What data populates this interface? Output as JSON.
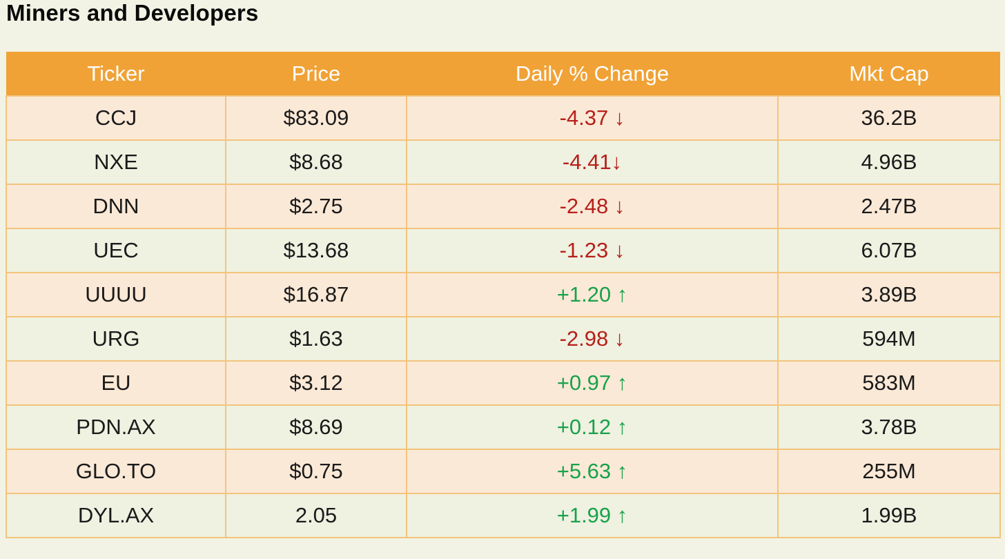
{
  "chart_data": {
    "type": "table",
    "title": "Miners and Developers",
    "columns": [
      "Ticker",
      "Price",
      "Daily % Change",
      "Mkt Cap"
    ],
    "rows": [
      {
        "ticker": "CCJ",
        "price": "$83.09",
        "change": "-4.37 ",
        "arrow": "↓",
        "direction": "down",
        "mkt_cap": "36.2B"
      },
      {
        "ticker": "NXE",
        "price": "$8.68",
        "change": "-4.41",
        "arrow": "↓",
        "direction": "down",
        "mkt_cap": "4.96B"
      },
      {
        "ticker": "DNN",
        "price": "$2.75",
        "change": "-2.48 ",
        "arrow": "↓",
        "direction": "down",
        "mkt_cap": "2.47B"
      },
      {
        "ticker": "UEC",
        "price": "$13.68",
        "change": "-1.23 ",
        "arrow": "↓",
        "direction": "down",
        "mkt_cap": "6.07B"
      },
      {
        "ticker": "UUUU",
        "price": "$16.87",
        "change": "+1.20 ",
        "arrow": "↑",
        "direction": "up",
        "mkt_cap": "3.89B"
      },
      {
        "ticker": "URG",
        "price": "$1.63",
        "change": "-2.98 ",
        "arrow": "↓",
        "direction": "down",
        "mkt_cap": "594M"
      },
      {
        "ticker": "EU",
        "price": "$3.12",
        "change": "+0.97 ",
        "arrow": "↑",
        "direction": "up",
        "mkt_cap": "583M"
      },
      {
        "ticker": "PDN.AX",
        "price": "$8.69",
        "change": "+0.12 ",
        "arrow": "↑",
        "direction": "up",
        "mkt_cap": "3.78B"
      },
      {
        "ticker": "GLO.TO",
        "price": "$0.75",
        "change": "+5.63 ",
        "arrow": "↑",
        "direction": "up",
        "mkt_cap": "255M"
      },
      {
        "ticker": "DYL.AX",
        "price": "2.05",
        "change": "+1.99 ",
        "arrow": "↑",
        "direction": "up",
        "mkt_cap": "1.99B"
      }
    ],
    "layout": {
      "row_striping": "peach/cream alternating",
      "all_cells_centered": true,
      "grid": true
    }
  },
  "colors": {
    "bg": "#f2f3e4",
    "header-bg": "#f0a236",
    "header-fg": "#fdfdfd",
    "peach": "#fbe9d7",
    "cream": "#eff1e1",
    "border": "#f3c47c",
    "negative": "#b6201a",
    "positive": "#18a24b",
    "text": "#1a1a1a"
  }
}
